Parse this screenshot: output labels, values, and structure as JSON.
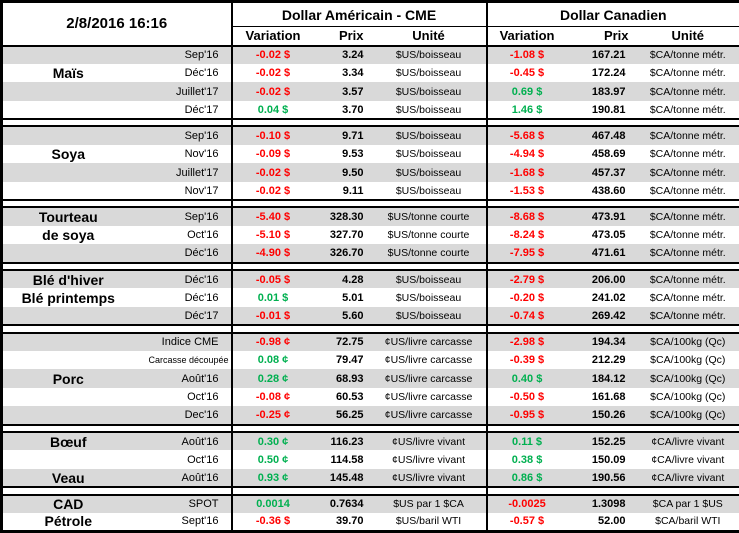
{
  "header": {
    "timestamp": "2/8/2016 16:16",
    "us_title": "Dollar Américain - CME",
    "ca_title": "Dollar Canadien",
    "subcolumns": [
      "Variation",
      "Prix",
      "Unité"
    ]
  },
  "colors": {
    "neg": "#ff0000",
    "pos": "#00b050",
    "row_gray": "#d9d9d9",
    "border": "#000000"
  },
  "sections": [
    {
      "name": "mais",
      "rows": [
        {
          "label": "",
          "contract": "Sep'16",
          "shade": "g",
          "us": {
            "var": "-0.02 $",
            "dir": "neg",
            "prix": "3.24",
            "unit": "$US/boisseau"
          },
          "ca": {
            "var": "-1.08 $",
            "dir": "neg",
            "prix": "167.21",
            "unit": "$CA/tonne métr."
          }
        },
        {
          "label": "Maïs",
          "contract": "Déc'16",
          "shade": "w",
          "us": {
            "var": "-0.02 $",
            "dir": "neg",
            "prix": "3.34",
            "unit": "$US/boisseau"
          },
          "ca": {
            "var": "-0.45 $",
            "dir": "neg",
            "prix": "172.24",
            "unit": "$CA/tonne métr."
          }
        },
        {
          "label": "",
          "contract": "Juillet'17",
          "shade": "g",
          "us": {
            "var": "-0.02 $",
            "dir": "neg",
            "prix": "3.57",
            "unit": "$US/boisseau"
          },
          "ca": {
            "var": "0.69 $",
            "dir": "pos",
            "prix": "183.97",
            "unit": "$CA/tonne métr."
          }
        },
        {
          "label": "",
          "contract": "Déc'17",
          "shade": "w",
          "us": {
            "var": "0.04 $",
            "dir": "pos",
            "prix": "3.70",
            "unit": "$US/boisseau"
          },
          "ca": {
            "var": "1.46 $",
            "dir": "pos",
            "prix": "190.81",
            "unit": "$CA/tonne métr."
          }
        }
      ]
    },
    {
      "name": "soya",
      "rows": [
        {
          "label": "",
          "contract": "Sep'16",
          "shade": "g",
          "us": {
            "var": "-0.10 $",
            "dir": "neg",
            "prix": "9.71",
            "unit": "$US/boisseau"
          },
          "ca": {
            "var": "-5.68 $",
            "dir": "neg",
            "prix": "467.48",
            "unit": "$CA/tonne métr."
          }
        },
        {
          "label": "Soya",
          "contract": "Nov'16",
          "shade": "w",
          "us": {
            "var": "-0.09 $",
            "dir": "neg",
            "prix": "9.53",
            "unit": "$US/boisseau"
          },
          "ca": {
            "var": "-4.94 $",
            "dir": "neg",
            "prix": "458.69",
            "unit": "$CA/tonne métr."
          }
        },
        {
          "label": "",
          "contract": "Juillet'17",
          "shade": "g",
          "us": {
            "var": "-0.02 $",
            "dir": "neg",
            "prix": "9.50",
            "unit": "$US/boisseau"
          },
          "ca": {
            "var": "-1.68 $",
            "dir": "neg",
            "prix": "457.37",
            "unit": "$CA/tonne métr."
          }
        },
        {
          "label": "",
          "contract": "Nov'17",
          "shade": "w",
          "us": {
            "var": "-0.02 $",
            "dir": "neg",
            "prix": "9.11",
            "unit": "$US/boisseau"
          },
          "ca": {
            "var": "-1.53 $",
            "dir": "neg",
            "prix": "438.60",
            "unit": "$CA/tonne métr."
          }
        }
      ]
    },
    {
      "name": "tourteau-de-soya",
      "rows": [
        {
          "label": "Tourteau",
          "contract": "Sep'16",
          "shade": "g",
          "us": {
            "var": "-5.40 $",
            "dir": "neg",
            "prix": "328.30",
            "unit": "$US/tonne courte"
          },
          "ca": {
            "var": "-8.68 $",
            "dir": "neg",
            "prix": "473.91",
            "unit": "$CA/tonne métr."
          }
        },
        {
          "label": "de soya",
          "contract": "Oct'16",
          "shade": "w",
          "us": {
            "var": "-5.10 $",
            "dir": "neg",
            "prix": "327.70",
            "unit": "$US/tonne courte"
          },
          "ca": {
            "var": "-8.24 $",
            "dir": "neg",
            "prix": "473.05",
            "unit": "$CA/tonne métr."
          }
        },
        {
          "label": "",
          "contract": "Déc'16",
          "shade": "g",
          "us": {
            "var": "-4.90 $",
            "dir": "neg",
            "prix": "326.70",
            "unit": "$US/tonne courte"
          },
          "ca": {
            "var": "-7.95 $",
            "dir": "neg",
            "prix": "471.61",
            "unit": "$CA/tonne métr."
          }
        }
      ]
    },
    {
      "name": "ble",
      "rows": [
        {
          "label": "Blé d'hiver",
          "contract": "Déc'16",
          "shade": "g",
          "us": {
            "var": "-0.05 $",
            "dir": "neg",
            "prix": "4.28",
            "unit": "$US/boisseau"
          },
          "ca": {
            "var": "-2.79 $",
            "dir": "neg",
            "prix": "206.00",
            "unit": "$CA/tonne métr."
          }
        },
        {
          "label": "Blé printemps",
          "contract": "Déc'16",
          "shade": "w",
          "us": {
            "var": "0.01 $",
            "dir": "pos",
            "prix": "5.01",
            "unit": "$US/boisseau"
          },
          "ca": {
            "var": "-0.20 $",
            "dir": "neg",
            "prix": "241.02",
            "unit": "$CA/tonne métr."
          }
        },
        {
          "label": "",
          "contract": "Déc'17",
          "shade": "g",
          "us": {
            "var": "-0.01 $",
            "dir": "neg",
            "prix": "5.60",
            "unit": "$US/boisseau"
          },
          "ca": {
            "var": "-0.74 $",
            "dir": "neg",
            "prix": "269.42",
            "unit": "$CA/tonne métr."
          }
        }
      ]
    },
    {
      "name": "porc",
      "rows": [
        {
          "label": "",
          "contract": "Indice CME",
          "shade": "g",
          "us": {
            "var": "-0.98 ¢",
            "dir": "neg",
            "prix": "72.75",
            "unit": "¢US/livre carcasse"
          },
          "ca": {
            "var": "-2.98 $",
            "dir": "neg",
            "prix": "194.34",
            "unit": "$CA/100kg (Qc)"
          }
        },
        {
          "label": "",
          "contract": "Carcasse découpée",
          "shade": "w",
          "us": {
            "var": "0.08 ¢",
            "dir": "pos",
            "prix": "79.47",
            "unit": "¢US/livre carcasse"
          },
          "ca": {
            "var": "-0.39 $",
            "dir": "neg",
            "prix": "212.29",
            "unit": "$CA/100kg (Qc)"
          }
        },
        {
          "label": "Porc",
          "contract": "Août'16",
          "shade": "g",
          "us": {
            "var": "0.28 ¢",
            "dir": "pos",
            "prix": "68.93",
            "unit": "¢US/livre carcasse"
          },
          "ca": {
            "var": "0.40 $",
            "dir": "pos",
            "prix": "184.12",
            "unit": "$CA/100kg (Qc)"
          }
        },
        {
          "label": "",
          "contract": "Oct'16",
          "shade": "w",
          "us": {
            "var": "-0.08 ¢",
            "dir": "neg",
            "prix": "60.53",
            "unit": "¢US/livre carcasse"
          },
          "ca": {
            "var": "-0.50 $",
            "dir": "neg",
            "prix": "161.68",
            "unit": "$CA/100kg (Qc)"
          }
        },
        {
          "label": "",
          "contract": "Dec'16",
          "shade": "g",
          "us": {
            "var": "-0.25 ¢",
            "dir": "neg",
            "prix": "56.25",
            "unit": "¢US/livre carcasse"
          },
          "ca": {
            "var": "-0.95 $",
            "dir": "neg",
            "prix": "150.26",
            "unit": "$CA/100kg (Qc)"
          }
        }
      ]
    },
    {
      "name": "boeuf-veau",
      "rows": [
        {
          "label": "Bœuf",
          "contract": "Août'16",
          "shade": "g",
          "us": {
            "var": "0.30 ¢",
            "dir": "pos",
            "prix": "116.23",
            "unit": "¢US/livre vivant"
          },
          "ca": {
            "var": "0.11 $",
            "dir": "pos",
            "prix": "152.25",
            "unit": "¢CA/livre vivant"
          }
        },
        {
          "label": "",
          "contract": "Oct'16",
          "shade": "w",
          "us": {
            "var": "0.50 ¢",
            "dir": "pos",
            "prix": "114.58",
            "unit": "¢US/livre vivant"
          },
          "ca": {
            "var": "0.38 $",
            "dir": "pos",
            "prix": "150.09",
            "unit": "¢CA/livre vivant"
          }
        },
        {
          "label": "Veau",
          "contract": "Août'16",
          "shade": "g",
          "us": {
            "var": "0.93 ¢",
            "dir": "pos",
            "prix": "145.48",
            "unit": "¢US/livre vivant"
          },
          "ca": {
            "var": "0.86 $",
            "dir": "pos",
            "prix": "190.56",
            "unit": "¢CA/livre vivant"
          }
        }
      ]
    },
    {
      "name": "cad-petrole",
      "rows": [
        {
          "label": "CAD",
          "contract": "SPOT",
          "shade": "g",
          "us": {
            "var": "0.0014",
            "dir": "pos",
            "prix": "0.7634",
            "unit": "$US par 1 $CA"
          },
          "ca": {
            "var": "-0.0025",
            "dir": "neg",
            "prix": "1.3098",
            "unit": "$CA par 1 $US"
          }
        },
        {
          "label": "Pétrole",
          "contract": "Sept'16",
          "shade": "w",
          "us": {
            "var": "-0.36 $",
            "dir": "neg",
            "prix": "39.70",
            "unit": "$US/baril WTI"
          },
          "ca": {
            "var": "-0.57 $",
            "dir": "neg",
            "prix": "52.00",
            "unit": "$CA/baril WTI"
          }
        }
      ]
    }
  ]
}
